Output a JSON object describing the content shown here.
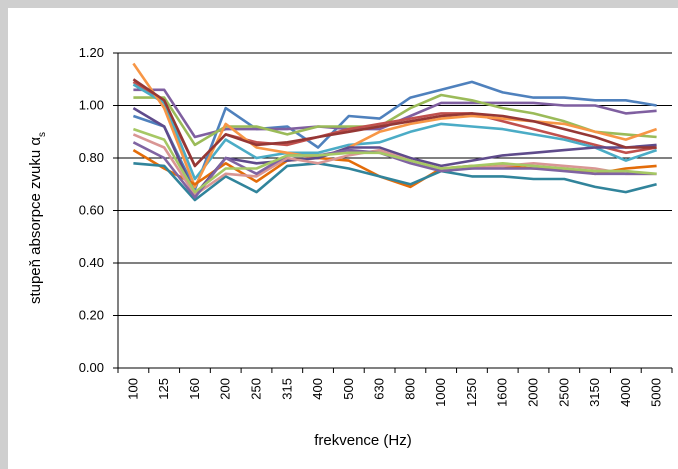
{
  "chart_data": {
    "type": "line",
    "ylabel": "stupeň absorpce zvuku α",
    "ylabel_subscript": "s",
    "xlabel": "frekvence (Hz)",
    "ylim": [
      0,
      1.2
    ],
    "yticks": [
      "0.00",
      "0.20",
      "0.40",
      "0.60",
      "0.80",
      "1.00",
      "1.20"
    ],
    "grid": "horizontal",
    "categories": [
      "100",
      "125",
      "160",
      "200",
      "250",
      "315",
      "400",
      "500",
      "630",
      "800",
      "1000",
      "1250",
      "1600",
      "2000",
      "2500",
      "3150",
      "4000",
      "5000"
    ],
    "series": [
      {
        "color": "#4f81bd",
        "values": [
          0.96,
          0.92,
          0.68,
          0.99,
          0.91,
          0.92,
          0.84,
          0.96,
          0.95,
          1.03,
          1.06,
          1.09,
          1.05,
          1.03,
          1.03,
          1.02,
          1.02,
          1.0
        ]
      },
      {
        "color": "#7f5fa0",
        "values": [
          1.06,
          1.06,
          0.88,
          0.91,
          0.91,
          0.91,
          0.92,
          0.91,
          0.91,
          0.96,
          1.01,
          1.01,
          1.01,
          1.01,
          1.0,
          1.0,
          0.97,
          0.98
        ]
      },
      {
        "color": "#9bbb59",
        "values": [
          1.03,
          1.03,
          0.85,
          0.92,
          0.92,
          0.89,
          0.92,
          0.92,
          0.92,
          0.99,
          1.04,
          1.02,
          0.99,
          0.97,
          0.94,
          0.9,
          0.89,
          0.88
        ]
      },
      {
        "color": "#c0504d",
        "values": [
          1.09,
          1.01,
          0.77,
          0.89,
          0.86,
          0.85,
          0.88,
          0.91,
          0.93,
          0.95,
          0.97,
          0.97,
          0.94,
          0.91,
          0.88,
          0.85,
          0.82,
          0.84
        ]
      },
      {
        "color": "#4bacc6",
        "values": [
          1.08,
          1.01,
          0.72,
          0.87,
          0.8,
          0.82,
          0.82,
          0.85,
          0.86,
          0.9,
          0.93,
          0.92,
          0.91,
          0.89,
          0.87,
          0.84,
          0.79,
          0.83
        ]
      },
      {
        "color": "#f79646",
        "values": [
          1.16,
          0.99,
          0.69,
          0.93,
          0.84,
          0.82,
          0.8,
          0.84,
          0.9,
          0.93,
          0.95,
          0.96,
          0.95,
          0.94,
          0.93,
          0.9,
          0.87,
          0.91
        ]
      },
      {
        "color": "#e36c09",
        "values": [
          0.83,
          0.76,
          0.7,
          0.78,
          0.71,
          0.79,
          0.8,
          0.79,
          0.73,
          0.69,
          0.76,
          0.77,
          0.77,
          0.76,
          0.76,
          0.74,
          0.76,
          0.77
        ]
      },
      {
        "color": "#31849b",
        "values": [
          0.78,
          0.77,
          0.64,
          0.73,
          0.67,
          0.77,
          0.78,
          0.76,
          0.73,
          0.7,
          0.75,
          0.73,
          0.73,
          0.72,
          0.72,
          0.69,
          0.67,
          0.7
        ]
      },
      {
        "color": "#5f4b8b",
        "values": [
          0.99,
          0.92,
          0.66,
          0.8,
          0.78,
          0.79,
          0.8,
          0.84,
          0.84,
          0.8,
          0.77,
          0.79,
          0.81,
          0.82,
          0.83,
          0.84,
          0.84,
          0.85
        ]
      },
      {
        "color": "#d99694",
        "values": [
          0.89,
          0.84,
          0.66,
          0.74,
          0.73,
          0.8,
          0.78,
          0.81,
          0.83,
          0.79,
          0.76,
          0.76,
          0.77,
          0.78,
          0.77,
          0.76,
          0.74,
          0.74
        ]
      },
      {
        "color": "#8064a2",
        "values": [
          0.86,
          0.8,
          0.65,
          0.8,
          0.74,
          0.81,
          0.81,
          0.83,
          0.82,
          0.78,
          0.75,
          0.76,
          0.76,
          0.76,
          0.75,
          0.74,
          0.74,
          0.74
        ]
      },
      {
        "color": "#a6c864",
        "values": [
          0.91,
          0.87,
          0.67,
          0.76,
          0.76,
          0.81,
          0.81,
          0.82,
          0.82,
          0.79,
          0.76,
          0.77,
          0.78,
          0.77,
          0.76,
          0.75,
          0.75,
          0.74
        ]
      },
      {
        "color": "#953735",
        "values": [
          1.1,
          1.02,
          0.77,
          0.89,
          0.85,
          0.86,
          0.88,
          0.9,
          0.92,
          0.94,
          0.96,
          0.97,
          0.96,
          0.94,
          0.91,
          0.88,
          0.84,
          0.84
        ]
      }
    ]
  }
}
